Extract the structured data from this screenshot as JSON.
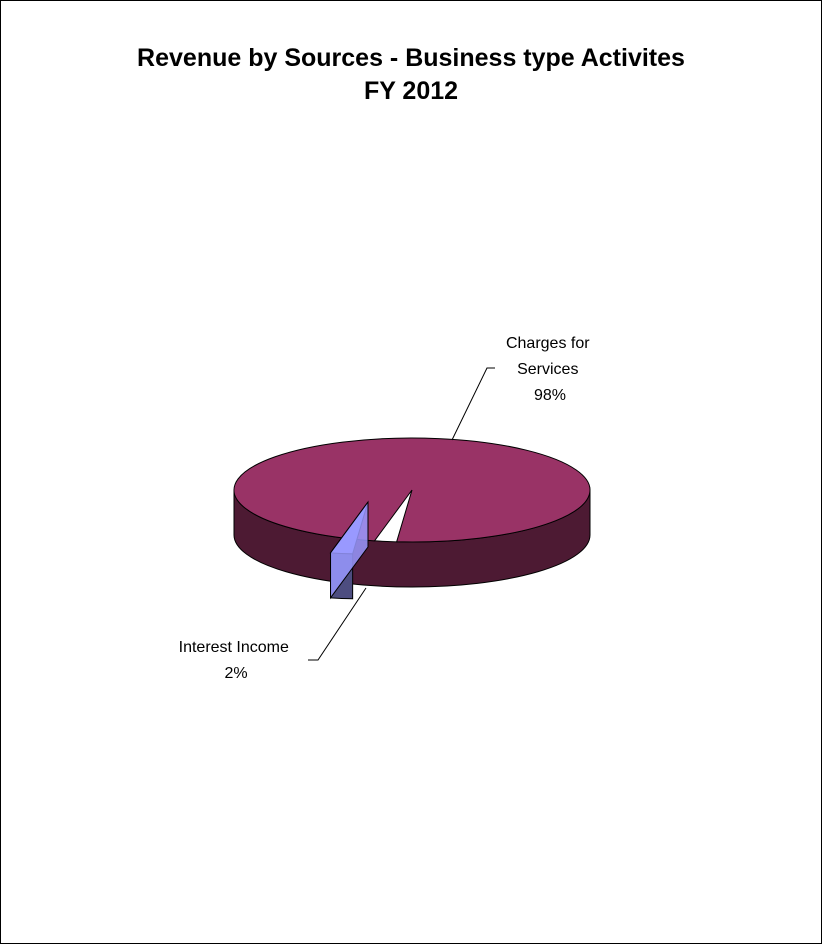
{
  "chart_data": {
    "type": "pie",
    "title": "Revenue by Sources - Business type Activites",
    "subtitle": "FY 2012",
    "three_d": true,
    "slices": [
      {
        "label_lines": [
          "Charges for",
          "Services"
        ],
        "value": 98,
        "value_label": "98%",
        "color": "#993366",
        "side_color": "#4d1a33"
      },
      {
        "label_lines": [
          "Interest Income"
        ],
        "value": 2,
        "value_label": "2%",
        "color": "#9999ff",
        "side_color": "#4d4d80",
        "exploded": true
      }
    ],
    "legend": "none"
  }
}
